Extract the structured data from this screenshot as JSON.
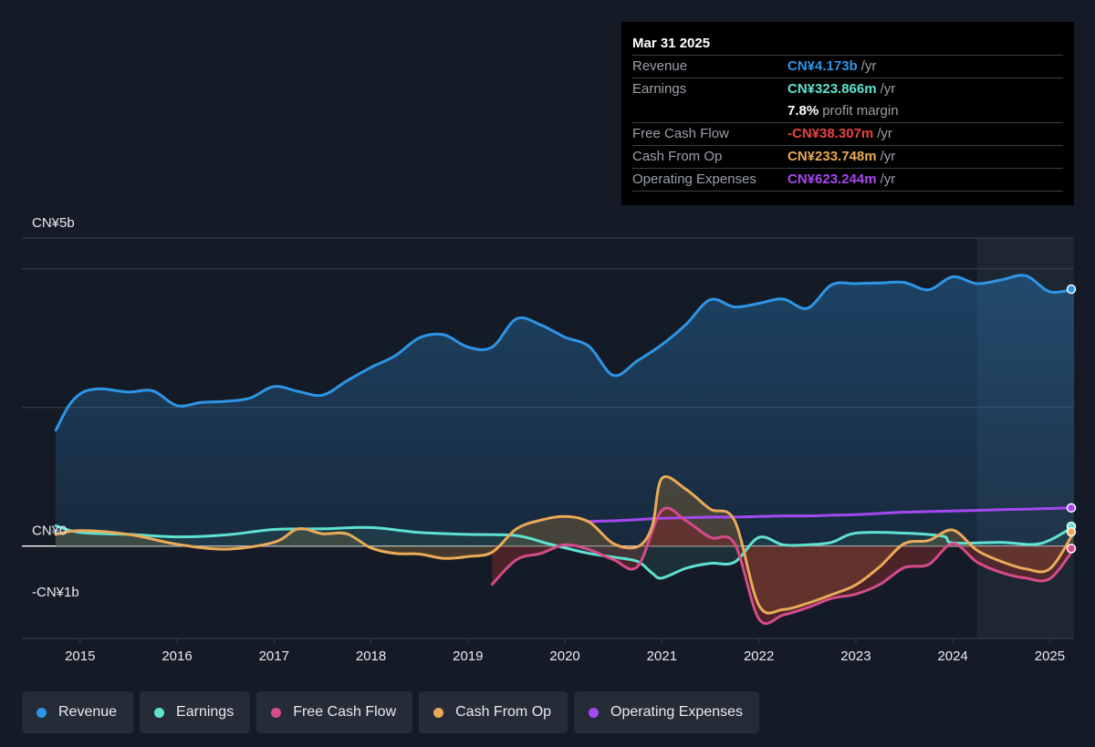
{
  "tooltip": {
    "date": "Mar 31 2025",
    "rows": [
      {
        "label": "Revenue",
        "value": "CN¥4.173b",
        "unit": "/yr",
        "color": "#2e95e6"
      },
      {
        "label": "Earnings",
        "value": "CN¥323.866m",
        "unit": "/yr",
        "color": "#5fe2cf"
      },
      {
        "label": "",
        "value": "7.8%",
        "unit": "profit margin",
        "color": "#ffffff"
      },
      {
        "label": "Free Cash Flow",
        "value": "-CN¥38.307m",
        "unit": "/yr",
        "color": "#e7443f"
      },
      {
        "label": "Cash From Op",
        "value": "CN¥233.748m",
        "unit": "/yr",
        "color": "#eaaa57"
      },
      {
        "label": "Operating Expenses",
        "value": "CN¥623.244m",
        "unit": "/yr",
        "color": "#a548f0"
      }
    ]
  },
  "chart_data": {
    "type": "line",
    "title": "",
    "xlabel": "",
    "ylabel": "",
    "y_tick_labels": [
      {
        "value": 5,
        "label": "CN¥5b"
      },
      {
        "value": 0,
        "label": "CN¥0"
      },
      {
        "value": -1,
        "label": "-CN¥1b"
      }
    ],
    "ylim": [
      -1.5,
      5
    ],
    "xlim": [
      2014.4,
      2025.25
    ],
    "x_ticks": [
      "2015",
      "2016",
      "2017",
      "2018",
      "2019",
      "2020",
      "2021",
      "2022",
      "2023",
      "2024",
      "2025"
    ],
    "legend_position": "bottom",
    "grid": true,
    "forecast_shade_start": 2024.25,
    "series": [
      {
        "name": "Revenue",
        "color": "#2e95e6",
        "x": [
          2014.75,
          2014.88,
          2015.0,
          2015.12,
          2015.25,
          2015.5,
          2015.75,
          2016.0,
          2016.25,
          2016.5,
          2016.75,
          2017.0,
          2017.25,
          2017.5,
          2017.75,
          2018.0,
          2018.25,
          2018.5,
          2018.75,
          2019.0,
          2019.25,
          2019.5,
          2019.75,
          2020.0,
          2020.25,
          2020.5,
          2020.75,
          2021.0,
          2021.25,
          2021.5,
          2021.75,
          2022.0,
          2022.25,
          2022.5,
          2022.75,
          2023.0,
          2023.25,
          2023.5,
          2023.75,
          2024.0,
          2024.25,
          2024.5,
          2024.75,
          2025.0,
          2025.25
        ],
        "values": [
          1.88,
          2.27,
          2.47,
          2.54,
          2.55,
          2.5,
          2.52,
          2.28,
          2.33,
          2.35,
          2.4,
          2.59,
          2.51,
          2.45,
          2.68,
          2.9,
          3.09,
          3.38,
          3.43,
          3.23,
          3.23,
          3.69,
          3.59,
          3.39,
          3.24,
          2.77,
          3.01,
          3.27,
          3.6,
          4.0,
          3.88,
          3.94,
          4.01,
          3.86,
          4.24,
          4.26,
          4.27,
          4.28,
          4.16,
          4.37,
          4.26,
          4.32,
          4.39,
          4.13,
          4.17
        ]
      },
      {
        "name": "Earnings",
        "color": "#5fe2cf",
        "x": [
          2014.75,
          2015.0,
          2015.5,
          2016.0,
          2016.5,
          2017.0,
          2017.5,
          2018.0,
          2018.5,
          2019.0,
          2019.5,
          2019.8,
          2020.0,
          2020.25,
          2020.5,
          2020.75,
          2020.9,
          2021.0,
          2021.25,
          2021.5,
          2021.75,
          2022.0,
          2022.25,
          2022.5,
          2022.75,
          2023.0,
          2023.5,
          2023.9,
          2024.0,
          2024.5,
          2024.9,
          2025.25
        ],
        "values": [
          0.33,
          0.22,
          0.19,
          0.15,
          0.18,
          0.27,
          0.28,
          0.3,
          0.22,
          0.19,
          0.17,
          0.05,
          -0.03,
          -0.12,
          -0.18,
          -0.25,
          -0.44,
          -0.52,
          -0.36,
          -0.28,
          -0.26,
          0.14,
          0.02,
          0.02,
          0.06,
          0.21,
          0.21,
          0.16,
          0.05,
          0.06,
          0.04,
          0.32
        ]
      },
      {
        "name": "Free Cash Flow",
        "color": "#d64b8a",
        "x": [
          2019.25,
          2019.5,
          2019.75,
          2020.0,
          2020.25,
          2020.5,
          2020.75,
          2021.0,
          2021.25,
          2021.5,
          2021.75,
          2022.0,
          2022.25,
          2022.5,
          2022.75,
          2023.0,
          2023.25,
          2023.5,
          2023.75,
          2024.0,
          2024.25,
          2024.5,
          2024.75,
          2025.0,
          2025.25
        ],
        "values": [
          -0.62,
          -0.22,
          -0.12,
          0.02,
          -0.06,
          -0.22,
          -0.33,
          0.58,
          0.41,
          0.14,
          0.04,
          -1.18,
          -1.12,
          -1.0,
          -0.85,
          -0.78,
          -0.62,
          -0.35,
          -0.3,
          0.04,
          -0.26,
          -0.43,
          -0.52,
          -0.53,
          -0.04
        ]
      },
      {
        "name": "Cash From Op",
        "color": "#eaaa57",
        "x": [
          2014.75,
          2015.0,
          2015.5,
          2016.0,
          2016.5,
          2017.0,
          2017.25,
          2017.5,
          2017.75,
          2018.0,
          2018.25,
          2018.5,
          2018.75,
          2019.0,
          2019.25,
          2019.5,
          2019.75,
          2020.0,
          2020.25,
          2020.5,
          2020.75,
          2020.9,
          2021.0,
          2021.25,
          2021.5,
          2021.75,
          2022.0,
          2022.25,
          2022.5,
          2022.75,
          2023.0,
          2023.25,
          2023.5,
          2023.75,
          2024.0,
          2024.25,
          2024.5,
          2024.75,
          2025.0,
          2025.25
        ],
        "values": [
          0.19,
          0.25,
          0.19,
          0.03,
          -0.05,
          0.06,
          0.28,
          0.2,
          0.2,
          -0.03,
          -0.12,
          -0.13,
          -0.2,
          -0.17,
          -0.1,
          0.28,
          0.42,
          0.48,
          0.39,
          0.04,
          -0.01,
          0.32,
          1.1,
          0.92,
          0.6,
          0.41,
          -0.96,
          -1.03,
          -0.93,
          -0.79,
          -0.63,
          -0.33,
          0.04,
          0.09,
          0.26,
          -0.07,
          -0.25,
          -0.37,
          -0.37,
          0.23
        ]
      },
      {
        "name": "Operating Expenses",
        "color": "#a548f0",
        "x": [
          2020.25,
          2020.5,
          2020.75,
          2021.0,
          2021.25,
          2021.5,
          2021.75,
          2022.0,
          2022.25,
          2022.5,
          2022.75,
          2023.0,
          2023.25,
          2023.5,
          2023.75,
          2024.0,
          2024.25,
          2024.5,
          2024.75,
          2025.0,
          2025.25
        ],
        "values": [
          0.4,
          0.41,
          0.43,
          0.45,
          0.46,
          0.47,
          0.47,
          0.48,
          0.49,
          0.49,
          0.5,
          0.51,
          0.53,
          0.55,
          0.56,
          0.57,
          0.58,
          0.59,
          0.6,
          0.61,
          0.62
        ]
      }
    ]
  },
  "legend": [
    {
      "label": "Revenue",
      "color": "#2e95e6"
    },
    {
      "label": "Earnings",
      "color": "#5fe2cf"
    },
    {
      "label": "Free Cash Flow",
      "color": "#d64b8a"
    },
    {
      "label": "Cash From Op",
      "color": "#eaaa57"
    },
    {
      "label": "Operating Expenses",
      "color": "#a548f0"
    }
  ]
}
